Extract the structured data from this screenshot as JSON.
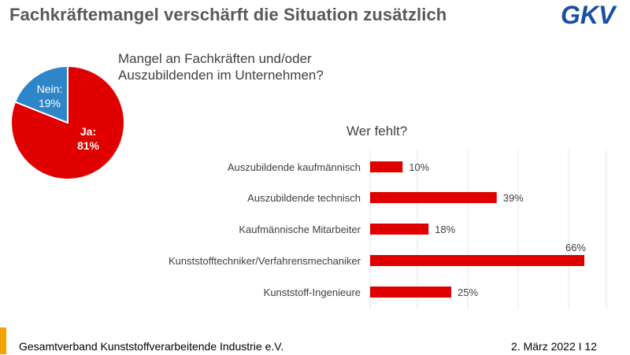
{
  "slide": {
    "title": "Fachkräftemangel verschärft die Situation zusätzlich",
    "question": "Mangel an Fachkräften und/oder Auszubildenden im Unternehmen?",
    "subtitle": "Wer fehlt?",
    "logo_text": "GKV",
    "footer_left": "Gesamtverband Kunststoffverarbeitende Industrie e.V.",
    "footer_right": "2. März 2022 I 12"
  },
  "colors": {
    "red": "#e00000",
    "blue": "#2e86c9",
    "logo_blue": "#1a4fa0",
    "footer_orange": "#f5a300"
  },
  "chart_data": [
    {
      "type": "pie",
      "title": "Mangel an Fachkräften und/oder Auszubildenden im Unternehmen?",
      "slices": [
        {
          "label": "Ja:",
          "value": 81,
          "display": "81%",
          "color": "#e00000"
        },
        {
          "label": "Nein:",
          "value": 19,
          "display": "19%",
          "color": "#2e86c9"
        }
      ]
    },
    {
      "type": "bar",
      "orientation": "horizontal",
      "title": "Wer fehlt?",
      "categories": [
        "Auszubildende kaufmännisch",
        "Auszubildende technisch",
        "Kaufmännische Mitarbeiter",
        "Kunststofftechniker/Verfahrensmechaniker",
        "Kunststoff-Ingenieure"
      ],
      "values": [
        10,
        39,
        18,
        66,
        25
      ],
      "value_labels": [
        "10%",
        "39%",
        "18%",
        "66%",
        "25%"
      ],
      "xlim": [
        0,
        70
      ],
      "grid": true,
      "color": "#e00000"
    }
  ]
}
